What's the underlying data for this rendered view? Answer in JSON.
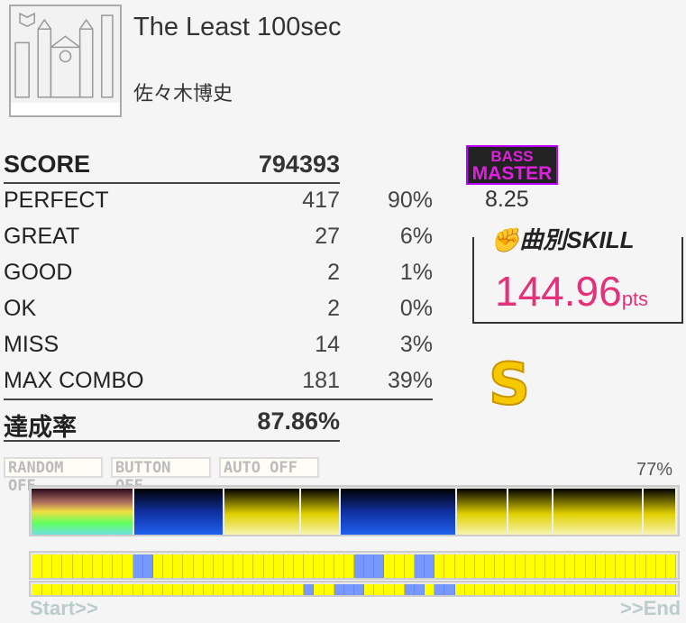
{
  "song": {
    "title": "The Least 100sec",
    "artist": "佐々木博史",
    "jacket_caption": "The Least 100sec 佐々木博史"
  },
  "results": {
    "score": {
      "label": "SCORE",
      "value": "794393"
    },
    "rows": [
      {
        "label": "PERFECT",
        "value": "417",
        "pct": "90%"
      },
      {
        "label": "GREAT",
        "value": "27",
        "pct": "6%"
      },
      {
        "label": "GOOD",
        "value": "2",
        "pct": "1%"
      },
      {
        "label": "OK",
        "value": "2",
        "pct": "0%"
      },
      {
        "label": "MISS",
        "value": "14",
        "pct": "3%"
      },
      {
        "label": "MAX COMBO",
        "value": "181",
        "pct": "39%"
      }
    ],
    "achievement": {
      "label": "達成率",
      "value": "87.86%"
    }
  },
  "difficulty": {
    "part": "BASS",
    "level_name": "MASTER",
    "level": "8.25",
    "color": "#bb00ff"
  },
  "skill": {
    "icon": "flexing-arm-icon",
    "header_jp": "曲別",
    "header_en": "SKILL",
    "value": "144.96",
    "unit": "pts",
    "color": "#e4327a"
  },
  "rank": "S",
  "options": [
    "RANDOM OFF",
    "BUTTON OFF",
    "AUTO OFF"
  ],
  "gauge": {
    "percent": "77%",
    "blocks": [
      "rainbow",
      "blue",
      "yellow",
      "yellow",
      "blue",
      "yellow",
      "yellow",
      "yellow",
      "yellow"
    ]
  },
  "timeline": {
    "segments": 64,
    "row1_blue": [
      10,
      11,
      32,
      33,
      34,
      38,
      39
    ],
    "row2_blue": [
      27,
      30,
      31,
      32,
      37,
      38,
      40,
      41
    ],
    "start_label": "Start>>",
    "end_label": ">>End"
  }
}
